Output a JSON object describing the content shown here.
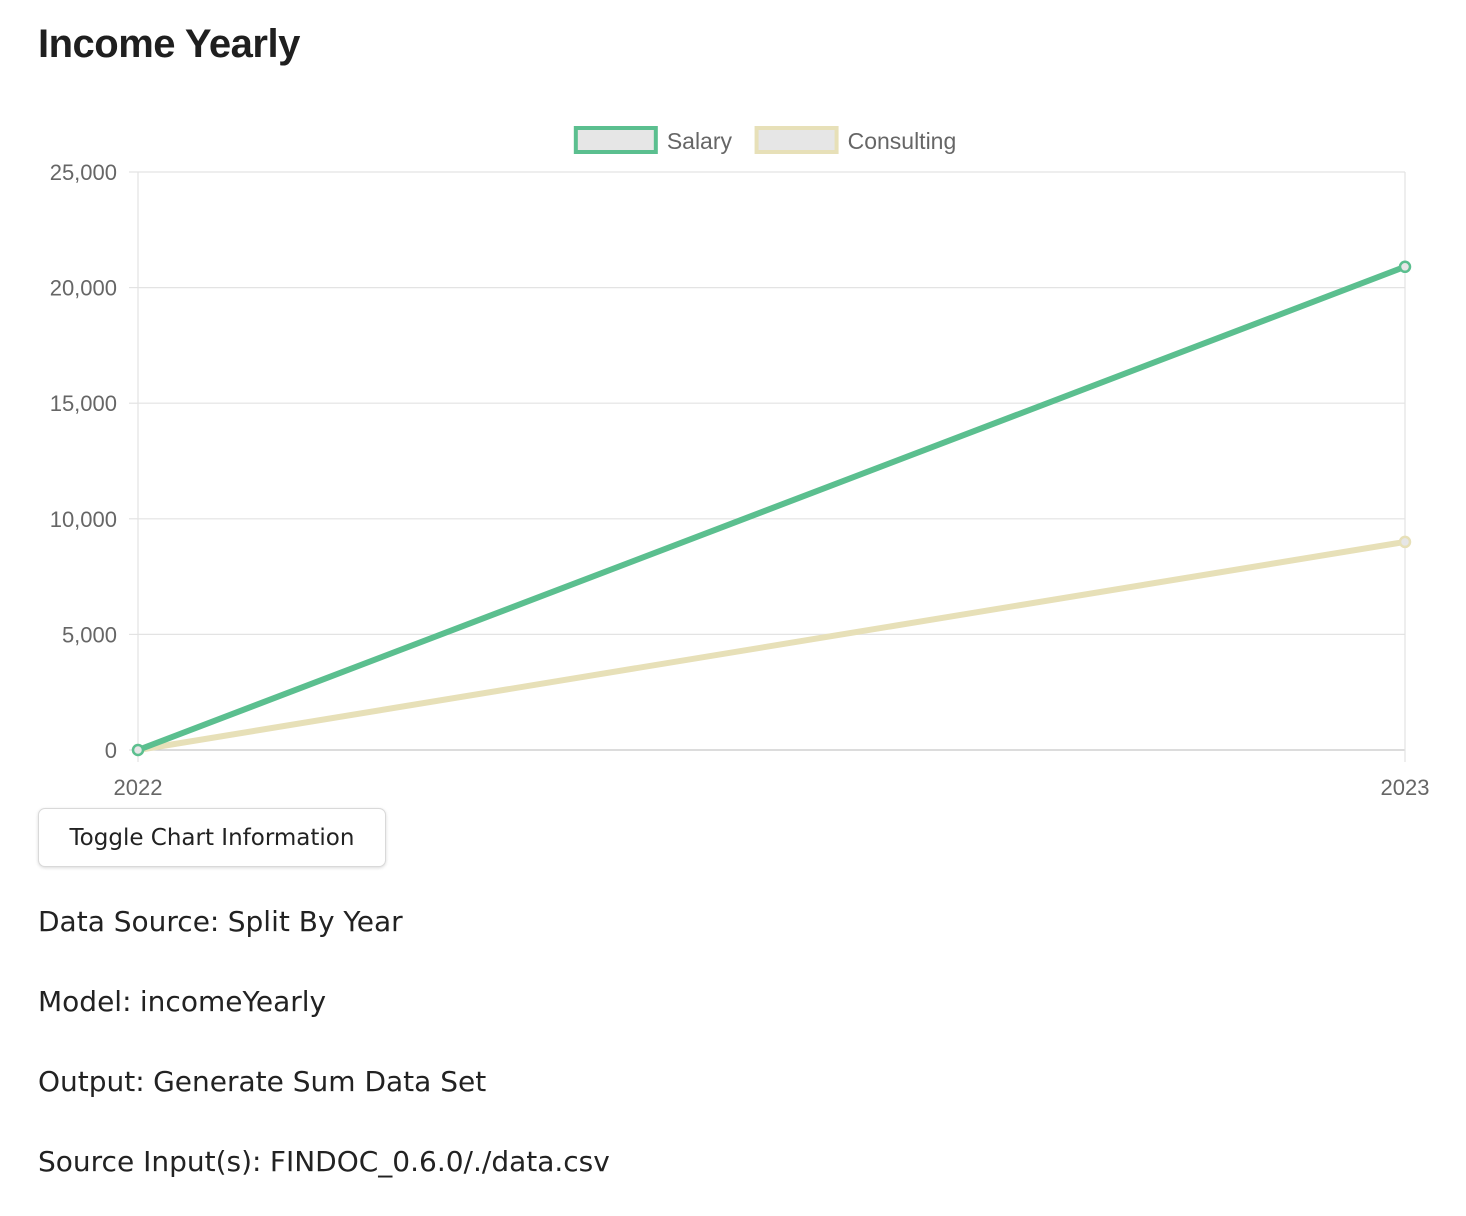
{
  "page": {
    "title": "Income Yearly"
  },
  "chart_data": {
    "type": "line",
    "categories": [
      "2022",
      "2023"
    ],
    "series": [
      {
        "name": "Salary",
        "values": [
          0,
          20900
        ],
        "color": "#5bbf8f"
      },
      {
        "name": "Consulting",
        "values": [
          0,
          9000
        ],
        "color": "#e7e0b8"
      }
    ],
    "ylim": [
      0,
      25000
    ],
    "yticks": [
      0,
      5000,
      10000,
      15000,
      20000,
      25000
    ],
    "ytick_labels": [
      "0",
      "5,000",
      "10,000",
      "15,000",
      "20,000",
      "25,000"
    ],
    "legend_position": "top-center",
    "grid": true,
    "legend_box_fill": "#e6e6e6"
  },
  "toggle_button": {
    "label": "Toggle Chart Information"
  },
  "info": [
    {
      "label": "Data Source:",
      "value": "Split By Year"
    },
    {
      "label": "Model:",
      "value": "incomeYearly"
    },
    {
      "label": "Output:",
      "value": "Generate Sum Data Set"
    },
    {
      "label": "Source Input(s):",
      "value": "FINDOC_0.6.0/./data.csv"
    }
  ]
}
